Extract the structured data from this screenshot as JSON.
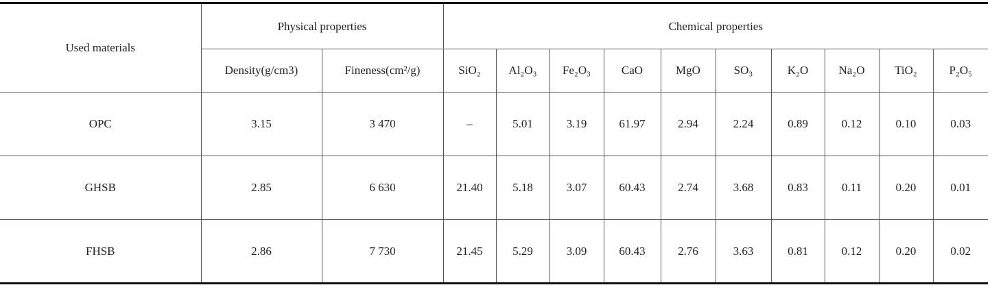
{
  "table": {
    "header": {
      "row_label": "Used materials",
      "groups": [
        "Physical properties",
        "Chemical properties"
      ],
      "columns": [
        "Density(g/cm3)",
        "Fineness(cm²/g)",
        "SiO₂",
        "Al₂O₃",
        "Fe₂O₃",
        "CaO",
        "MgO",
        "SO₃",
        "K₂O",
        "Na₂O",
        "TiO₂",
        "P₂O₅"
      ]
    },
    "rows": [
      [
        "OPC",
        "3.15",
        "3 470",
        "–",
        "5.01",
        "3.19",
        "61.97",
        "2.94",
        "2.24",
        "0.89",
        "0.12",
        "0.10",
        "0.03"
      ],
      [
        "GHSB",
        "2.85",
        "6 630",
        "21.40",
        "5.18",
        "3.07",
        "60.43",
        "2.74",
        "3.68",
        "0.83",
        "0.11",
        "0.20",
        "0.01"
      ],
      [
        "FHSB",
        "2.86",
        "7 730",
        "21.45",
        "5.29",
        "3.09",
        "60.43",
        "2.76",
        "3.63",
        "0.81",
        "0.12",
        "0.20",
        "0.02"
      ]
    ]
  }
}
